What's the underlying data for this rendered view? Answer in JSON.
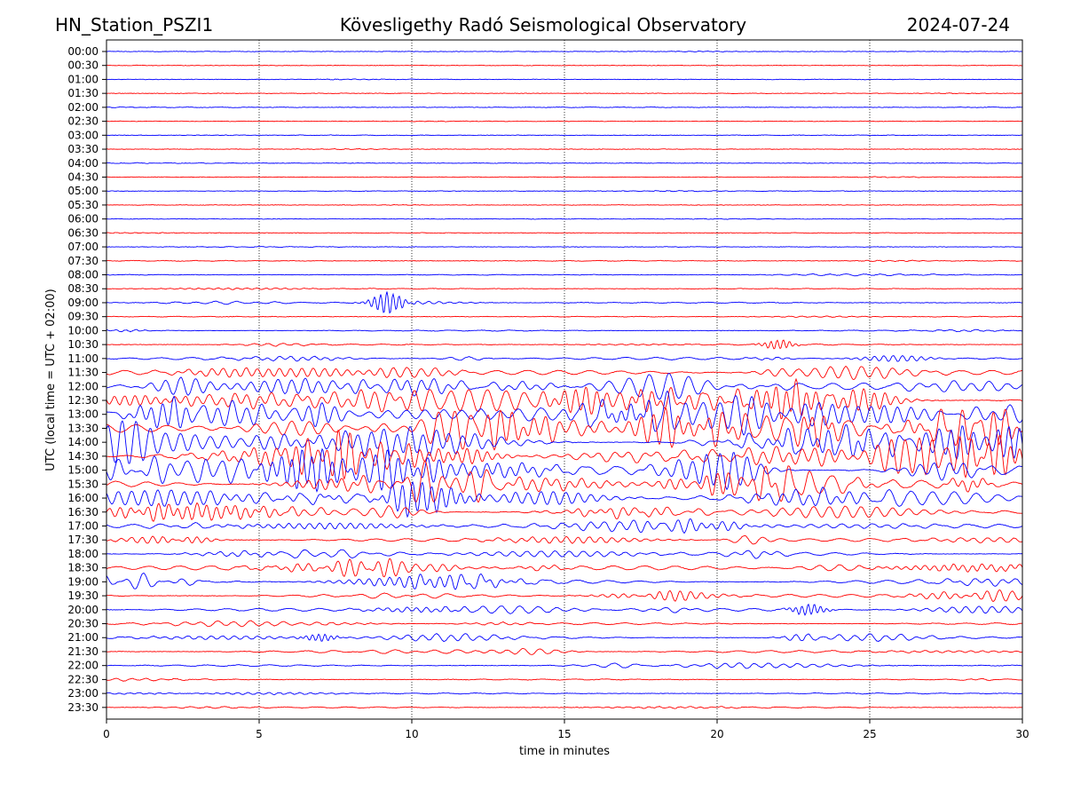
{
  "header": {
    "station": "HN_Station_PSZI1",
    "observatory": "Kövesligethy Radó Seismological Observatory",
    "date": "2024-07-24"
  },
  "chart_data": {
    "type": "line",
    "subtype": "helicorder",
    "xlabel": "time in minutes",
    "ylabel": "UTC (local time = UTC + 02:00)",
    "xlim": [
      0,
      30
    ],
    "x_ticks": [
      0,
      5,
      10,
      15,
      20,
      25,
      30
    ],
    "grid": "vertical dotted at x ticks",
    "trace_colors": [
      "#0000ff",
      "#ff0000"
    ],
    "rows": [
      "00:00",
      "00:30",
      "01:00",
      "01:30",
      "02:00",
      "02:30",
      "03:00",
      "03:30",
      "04:00",
      "04:30",
      "05:00",
      "05:30",
      "06:00",
      "06:30",
      "07:00",
      "07:30",
      "08:00",
      "08:30",
      "09:00",
      "09:30",
      "10:00",
      "10:30",
      "11:00",
      "11:30",
      "12:00",
      "12:30",
      "13:00",
      "13:30",
      "14:00",
      "14:30",
      "15:00",
      "15:30",
      "16:00",
      "16:30",
      "17:00",
      "17:30",
      "18:00",
      "18:30",
      "19:00",
      "19:30",
      "20:00",
      "20:30",
      "21:00",
      "21:30",
      "22:00",
      "22:30",
      "23:00",
      "23:30"
    ],
    "activity_level": [
      0.1,
      0.08,
      0.1,
      0.08,
      0.15,
      0.08,
      0.12,
      0.08,
      0.1,
      0.1,
      0.12,
      0.08,
      0.08,
      0.1,
      0.12,
      0.2,
      0.2,
      0.2,
      0.3,
      0.15,
      0.3,
      0.35,
      0.8,
      1.4,
      2.2,
      2.6,
      2.8,
      3.0,
      3.0,
      2.9,
      2.8,
      2.6,
      2.0,
      1.5,
      1.2,
      1.0,
      1.2,
      1.4,
      1.4,
      1.0,
      0.9,
      0.6,
      0.8,
      0.7,
      0.5,
      0.3,
      0.3,
      0.35
    ],
    "events": [
      {
        "row": "09:00",
        "minute": 9.2,
        "magnitude": 1.2
      },
      {
        "row": "10:30",
        "minute": 22.0,
        "magnitude": 0.5
      },
      {
        "row": "20:00",
        "minute": 23.0,
        "magnitude": 0.6
      },
      {
        "row": "21:00",
        "minute": 7.0,
        "magnitude": 0.4
      }
    ]
  }
}
